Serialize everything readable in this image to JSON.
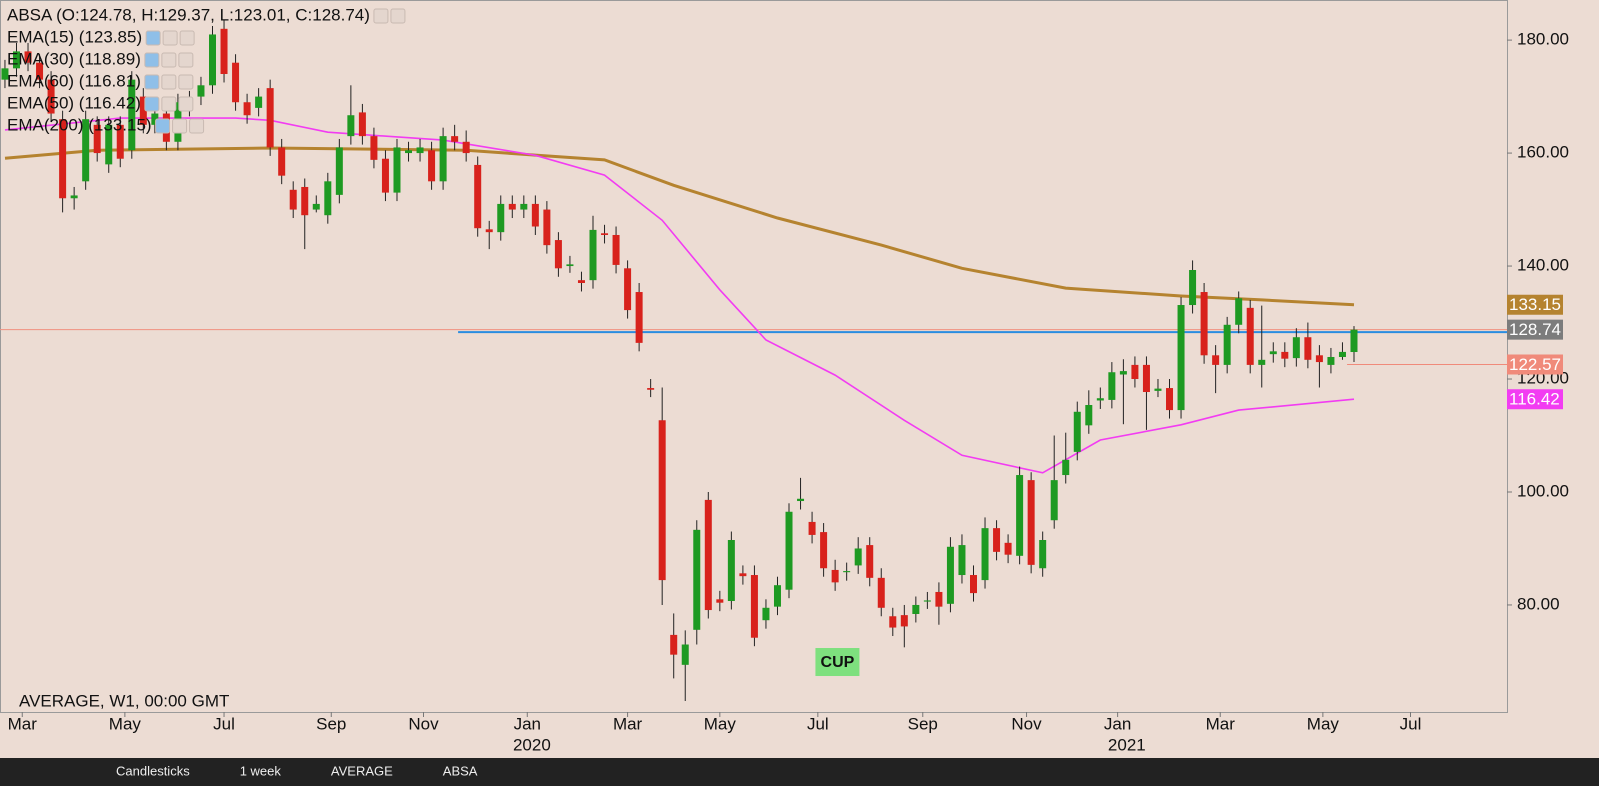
{
  "chart_data": {
    "type": "candlestick",
    "legend": [
      "ABSA (O:124.78, H:129.37, L:123.01, C:128.74)",
      "EMA(15) (123.85)",
      "EMA(30) (118.89)",
      "EMA(60) (116.81)",
      "EMA(50) (116.42)",
      "EMA(200) (133.15)"
    ],
    "footer": "AVERAGE, W1, 00:00 GMT",
    "annotation": {
      "text": "CUP",
      "x": 72.2,
      "y": 69.9
    },
    "up_color": "#1e9a22",
    "down_color": "#d8221c",
    "open": [
      173,
      175,
      178,
      176,
      173,
      166,
      152,
      155,
      165,
      158,
      165,
      160.5,
      170,
      165,
      167,
      162,
      168,
      170,
      172,
      182,
      176,
      169,
      168,
      171.5,
      161,
      153.5,
      154,
      150,
      149,
      152.6,
      163,
      167.2,
      163,
      159,
      153,
      160,
      160,
      160.5,
      155,
      163,
      162,
      157.9,
      146.5,
      146,
      151,
      150,
      151,
      150,
      144.6,
      140,
      137.5,
      137.5,
      145.8,
      145.5,
      139.6,
      135.4,
      118.4,
      112.7,
      74.7,
      69.4,
      75.6,
      98.6,
      81,
      80.7,
      85.6,
      85.3,
      77.3,
      79.7,
      82.7,
      98.4,
      94.7,
      92.9,
      86.2,
      85.8,
      87,
      90.6,
      84.8,
      78,
      78.2,
      78.4,
      80.6,
      82.3,
      80.2,
      85.3,
      85.3,
      84.4,
      93.6,
      91,
      88.7,
      102.1,
      86.5,
      95,
      103,
      107.1,
      111.8,
      116.2,
      116.3,
      120.8,
      122.5,
      122.5,
      117.9,
      118.4,
      114.5,
      133.1,
      135.4,
      124.2,
      122.5,
      129.6,
      132.6,
      122.5,
      124.4,
      124.8,
      123.7,
      127.4,
      124.2,
      122.5,
      123.9,
      124.78
    ],
    "high": [
      176.5,
      179.5,
      179.5,
      177.5,
      174.5,
      167.5,
      154,
      167.5,
      166.5,
      166.5,
      166.5,
      174.5,
      171.5,
      168.5,
      168.5,
      170.5,
      171,
      173.5,
      182.5,
      183.5,
      177.5,
      170.5,
      171.5,
      173,
      162.5,
      155,
      155.5,
      152.5,
      156.5,
      162.5,
      172,
      168.7,
      164.5,
      160.5,
      162.5,
      162,
      162.5,
      162,
      164.5,
      165,
      164,
      159.4,
      148,
      152.5,
      152.5,
      152.5,
      152.5,
      151.5,
      146,
      141.8,
      139,
      148.9,
      147.3,
      147,
      141,
      137,
      120,
      118.5,
      78.5,
      75.5,
      95,
      100,
      82.5,
      93,
      87,
      87,
      81,
      85,
      98,
      102.5,
      96.5,
      94.5,
      88,
      87.5,
      92,
      92,
      86.5,
      79.5,
      80,
      81.5,
      82.3,
      84,
      92,
      92.5,
      87,
      95.5,
      95,
      92.5,
      104.5,
      103.5,
      93,
      110,
      110.5,
      116,
      118,
      118.5,
      123,
      123.5,
      124,
      124,
      120,
      120,
      134.5,
      141,
      137,
      126,
      131,
      135.5,
      134,
      133,
      126.5,
      126.5,
      129,
      130,
      126,
      125.5,
      126.5,
      129.37
    ],
    "low": [
      171.5,
      173.5,
      174.5,
      171.5,
      165.5,
      149.5,
      150,
      153.5,
      158.5,
      156.5,
      157.5,
      159,
      163.5,
      163.5,
      160.5,
      160.5,
      166.5,
      168.5,
      170.5,
      172.5,
      167.5,
      165.2,
      166.5,
      159.5,
      154.5,
      148.5,
      143,
      149.5,
      147.5,
      151.1,
      161.5,
      161.5,
      157.3,
      151.5,
      151.5,
      158.5,
      158.5,
      153.5,
      153.5,
      160.5,
      158.5,
      145.2,
      143,
      144.5,
      148.5,
      148.5,
      145.5,
      142.2,
      138.1,
      138.8,
      135.5,
      136,
      144,
      138.7,
      130.7,
      124.9,
      116.8,
      80,
      67,
      63,
      73,
      77.6,
      78.9,
      79.2,
      83.6,
      72.7,
      75.8,
      78.2,
      81.2,
      96.9,
      90.9,
      85,
      82.5,
      84.3,
      85.5,
      83.3,
      78,
      74.5,
      72.5,
      76.9,
      79.3,
      76.5,
      78.7,
      83.8,
      80.6,
      82.9,
      87.9,
      87.4,
      87.2,
      85.6,
      85,
      93.5,
      101.5,
      105.6,
      110.3,
      114.7,
      114.8,
      112,
      118.5,
      111,
      116.8,
      113,
      113,
      131.6,
      122.7,
      117.5,
      121,
      128.1,
      121,
      118.5,
      122.9,
      122.1,
      122.2,
      121.9,
      118.5,
      121,
      123.4,
      123.01
    ],
    "close": [
      175,
      178,
      176,
      173,
      167,
      152,
      152.5,
      166,
      160,
      165,
      159,
      173,
      165,
      167,
      162,
      169,
      169.5,
      172,
      181,
      174,
      169,
      166.7,
      170,
      161,
      156,
      150,
      149,
      151,
      155,
      161,
      166.7,
      163,
      158.8,
      153,
      161,
      160.5,
      161,
      155,
      163,
      162,
      160,
      146.7,
      146,
      151,
      150,
      151,
      147,
      143.7,
      139.6,
      140.3,
      137,
      146.4,
      145.5,
      140.2,
      132.2,
      126.4,
      118.1,
      84.4,
      71.2,
      73,
      93.3,
      79.1,
      80.4,
      91.5,
      85.1,
      74.2,
      79.5,
      83.5,
      96.5,
      98.8,
      92.4,
      86.5,
      84,
      86,
      90,
      84.8,
      79.5,
      76,
      76.2,
      80,
      80.8,
      79.7,
      90.3,
      90.6,
      82.1,
      93.6,
      89.4,
      88.9,
      103,
      87.1,
      91.5,
      102.1,
      105.7,
      114.2,
      115.4,
      116.6,
      121.2,
      121.4,
      120,
      117.7,
      118.3,
      114.5,
      133.1,
      139.3,
      124.2,
      122.5,
      129.6,
      134.3,
      122.5,
      123.4,
      124.9,
      123.6,
      127.4,
      123.4,
      123,
      123.9,
      124.8,
      128.74
    ],
    "lines": [
      {
        "name": "EMA(200)",
        "color": "#b5832f",
        "x": [
          0,
          8,
          23,
          40,
          52,
          58,
          67,
          76,
          83,
          92,
          102,
          109,
          117
        ],
        "values": [
          159.1,
          160.5,
          160.9,
          160.5,
          158.8,
          154.3,
          148.5,
          143.7,
          139.6,
          136.1,
          134.7,
          134,
          133.15
        ]
      },
      {
        "name": "EMA(50)",
        "color": "#f23cf2",
        "x": [
          0,
          10,
          20,
          23,
          28,
          38,
          46,
          52,
          57,
          62,
          66,
          72,
          78,
          83,
          90,
          95,
          102,
          107,
          117
        ],
        "values": [
          164.1,
          166.2,
          166.2,
          165.8,
          163.7,
          162.3,
          159.6,
          156.1,
          148.1,
          135.8,
          126.9,
          120.7,
          112.7,
          106.5,
          103.4,
          109.2,
          111.9,
          114.5,
          116.42
        ]
      }
    ],
    "hlines": [
      {
        "value": 128.74,
        "color": "#f09080",
        "from": -0.43
      },
      {
        "value": 128.3,
        "color": "#2a8de0",
        "from": 39.3
      },
      {
        "value": 122.57,
        "color": "#f08a7a",
        "from": 116.4
      }
    ],
    "price_labels": [
      {
        "value": 133.15,
        "color": "#b5832f"
      },
      {
        "value": 128.74,
        "color": "#7c7c7c"
      },
      {
        "value": 122.57,
        "color": "#f08a7a"
      },
      {
        "value": 116.42,
        "color": "#f23cf2"
      }
    ],
    "xlim": [
      -0.43,
      130.27
    ],
    "ylim": [
      61.05,
      187.1
    ],
    "yticks": [
      {
        "value": 80,
        "label": "80.00"
      },
      {
        "value": 100,
        "label": "100.00"
      },
      {
        "value": 120,
        "label": "120.00"
      },
      {
        "value": 140,
        "label": "140.00"
      },
      {
        "value": 160,
        "label": "160.00"
      },
      {
        "value": 180,
        "label": "180.00"
      }
    ],
    "xticks": [
      {
        "value": 1.5,
        "label": "Mar"
      },
      {
        "value": 10.4,
        "label": "May"
      },
      {
        "value": 19,
        "label": "Jul"
      },
      {
        "value": 28.3,
        "label": "Sep"
      },
      {
        "value": 36.3,
        "label": "Nov"
      },
      {
        "value": 45.3,
        "label": "Jan"
      },
      {
        "value": 54,
        "label": "Mar"
      },
      {
        "value": 62,
        "label": "May"
      },
      {
        "value": 70.5,
        "label": "Jul"
      },
      {
        "value": 79.6,
        "label": "Sep"
      },
      {
        "value": 88.6,
        "label": "Nov"
      },
      {
        "value": 96.5,
        "label": "Jan"
      },
      {
        "value": 105.4,
        "label": "Mar"
      },
      {
        "value": 114.3,
        "label": "May"
      },
      {
        "value": 121.9,
        "label": "Jul"
      }
    ],
    "year_ticks": [
      {
        "value": 45.7,
        "label": "2020"
      },
      {
        "value": 97.3,
        "label": "2021"
      }
    ]
  },
  "toolbar": [
    "Candlesticks",
    "1 week",
    "AVERAGE",
    "ABSA"
  ]
}
